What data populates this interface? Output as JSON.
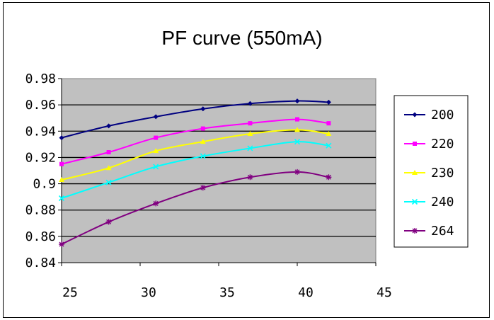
{
  "chart_data": {
    "type": "line",
    "title": "PF curve (550mA)",
    "xlabel": "",
    "ylabel": "",
    "xlim": [
      25,
      45
    ],
    "ylim": [
      0.84,
      0.98
    ],
    "x_ticks": [
      "25",
      "30",
      "35",
      "40",
      "45"
    ],
    "y_ticks": [
      "0.98",
      "0.96",
      "0.94",
      "0.92",
      "0.9",
      "0.88",
      "0.86",
      "0.84"
    ],
    "grid": true,
    "plot_background": "#c0c0c0",
    "legend_position": "right",
    "x": [
      25,
      28,
      31,
      34,
      37,
      40,
      42
    ],
    "series": [
      {
        "name": "200",
        "color": "#000080",
        "marker": "diamond",
        "values": [
          0.935,
          0.944,
          0.951,
          0.957,
          0.961,
          0.963,
          0.962
        ]
      },
      {
        "name": "220",
        "color": "#ff00ff",
        "marker": "square",
        "values": [
          0.915,
          0.924,
          0.935,
          0.942,
          0.946,
          0.949,
          0.946
        ]
      },
      {
        "name": "230",
        "color": "#ffff00",
        "marker": "triangle",
        "values": [
          0.903,
          0.912,
          0.925,
          0.932,
          0.938,
          0.941,
          0.938
        ]
      },
      {
        "name": "240",
        "color": "#00ffff",
        "marker": "x",
        "values": [
          0.889,
          0.901,
          0.913,
          0.921,
          0.927,
          0.932,
          0.929
        ]
      },
      {
        "name": "264",
        "color": "#800080",
        "marker": "star",
        "values": [
          0.854,
          0.871,
          0.885,
          0.897,
          0.905,
          0.909,
          0.905
        ]
      }
    ]
  }
}
